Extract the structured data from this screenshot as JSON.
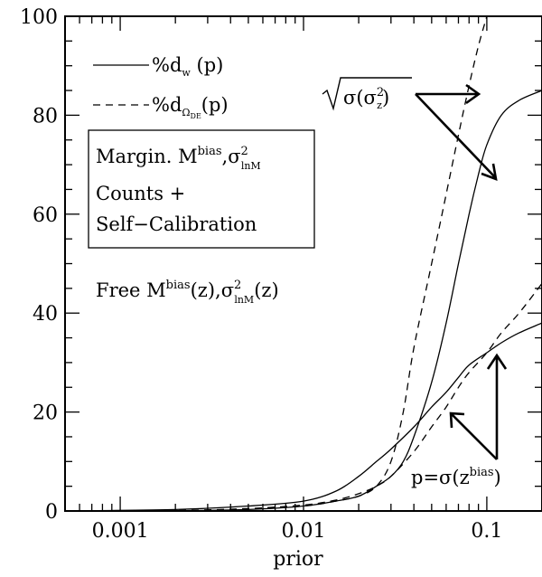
{
  "chart_data": {
    "type": "line",
    "title": "",
    "xlabel": "prior",
    "ylabel": "",
    "xscale": "log",
    "xlim": [
      0.0005,
      0.2
    ],
    "ylim": [
      0,
      100
    ],
    "grid": false,
    "legend_placement": "top-left",
    "x_ticks": [
      {
        "value": 0.001,
        "label": "0.001"
      },
      {
        "value": 0.01,
        "label": "0.01"
      },
      {
        "value": 0.1,
        "label": "0.1"
      }
    ],
    "y_ticks": [
      {
        "value": 0,
        "label": "0"
      },
      {
        "value": 20,
        "label": "20"
      },
      {
        "value": 40,
        "label": "40"
      },
      {
        "value": 60,
        "label": "60"
      },
      {
        "value": 80,
        "label": "80"
      },
      {
        "value": 100,
        "label": "100"
      }
    ],
    "legend": [
      {
        "style": "solid",
        "prefix": "%d",
        "sub": "w",
        "suffix": " (p)"
      },
      {
        "style": "dashed",
        "prefix": "%d",
        "sub": "Ω",
        "subsub": "DE",
        "suffix": "(p)"
      }
    ],
    "series": [
      {
        "style": "solid",
        "group": "sigma_z2",
        "points": [
          [
            0.0005,
            0
          ],
          [
            0.002,
            0.05
          ],
          [
            0.005,
            0.3
          ],
          [
            0.01,
            1
          ],
          [
            0.015,
            2
          ],
          [
            0.02,
            3
          ],
          [
            0.025,
            5
          ],
          [
            0.03,
            7
          ],
          [
            0.035,
            10
          ],
          [
            0.04,
            15
          ],
          [
            0.05,
            26
          ],
          [
            0.06,
            38
          ],
          [
            0.07,
            50
          ],
          [
            0.08,
            60
          ],
          [
            0.09,
            68
          ],
          [
            0.1,
            74
          ],
          [
            0.12,
            80
          ],
          [
            0.15,
            83
          ],
          [
            0.2,
            85
          ]
        ]
      },
      {
        "style": "dashed",
        "group": "sigma_z2",
        "points": [
          [
            0.0005,
            0
          ],
          [
            0.002,
            0.1
          ],
          [
            0.005,
            0.4
          ],
          [
            0.01,
            1
          ],
          [
            0.015,
            2
          ],
          [
            0.02,
            3
          ],
          [
            0.025,
            5
          ],
          [
            0.03,
            10
          ],
          [
            0.035,
            20
          ],
          [
            0.04,
            33
          ],
          [
            0.05,
            50
          ],
          [
            0.06,
            64
          ],
          [
            0.07,
            76
          ],
          [
            0.08,
            86
          ],
          [
            0.09,
            94
          ],
          [
            0.1,
            100
          ]
        ]
      },
      {
        "style": "solid",
        "group": "z_bias",
        "points": [
          [
            0.0005,
            0
          ],
          [
            0.002,
            0.3
          ],
          [
            0.005,
            1
          ],
          [
            0.01,
            2
          ],
          [
            0.015,
            4
          ],
          [
            0.02,
            7
          ],
          [
            0.025,
            10
          ],
          [
            0.03,
            12.5
          ],
          [
            0.04,
            17
          ],
          [
            0.05,
            21
          ],
          [
            0.06,
            24
          ],
          [
            0.07,
            27
          ],
          [
            0.08,
            29.5
          ],
          [
            0.1,
            32
          ],
          [
            0.12,
            34
          ],
          [
            0.15,
            36
          ],
          [
            0.2,
            38
          ]
        ]
      },
      {
        "style": "dashed",
        "group": "z_bias",
        "points": [
          [
            0.0005,
            0
          ],
          [
            0.002,
            0.1
          ],
          [
            0.005,
            0.5
          ],
          [
            0.01,
            1.2
          ],
          [
            0.015,
            2.2
          ],
          [
            0.02,
            3.5
          ],
          [
            0.025,
            5
          ],
          [
            0.03,
            7
          ],
          [
            0.04,
            12
          ],
          [
            0.05,
            17
          ],
          [
            0.06,
            21
          ],
          [
            0.07,
            25
          ],
          [
            0.08,
            28
          ],
          [
            0.1,
            32
          ],
          [
            0.12,
            36
          ],
          [
            0.15,
            40
          ],
          [
            0.2,
            46
          ]
        ]
      }
    ],
    "annotations": {
      "box_line1_prefix": "Margin. M",
      "box_line1_sup": "bias",
      "box_line1_mid": ",σ",
      "box_line1_sup2": "2",
      "box_line1_sub2": "lnM",
      "box_line2": "Counts +",
      "box_line3": "Self−Calibration",
      "free_prefix": "Free M",
      "free_sup": "bias",
      "free_mid": "(z),σ",
      "free_sup2": "2",
      "free_sub2": "lnM",
      "free_suffix": "(z)",
      "sigma_label_main": "σ(σ",
      "sigma_label_sup": "2",
      "sigma_label_sub": "z",
      "sigma_label_close": ")",
      "p_label_main": "p=σ(z",
      "p_label_sup": "bias",
      "p_label_close": ")"
    }
  }
}
